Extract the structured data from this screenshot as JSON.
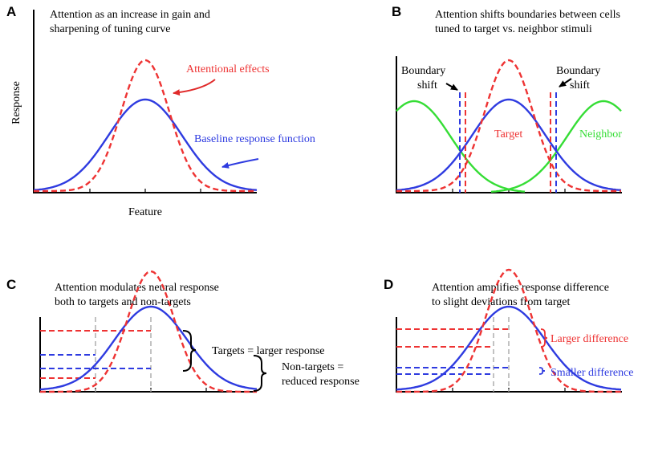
{
  "colors": {
    "baseline": "#2e3be0",
    "attention": "#ee3333",
    "neighbor": "#35dd35",
    "guide": "#a8a8a8",
    "arrow_red": "#e02a2a",
    "arrow_blue": "#2e3be0"
  },
  "panels": {
    "A": {
      "letter": "A",
      "caption": [
        "Attention as an increase in gain and",
        "sharpening of tuning curve"
      ],
      "ylabel": "Response",
      "xlabel": "Feature",
      "labels": {
        "attentional": "Attentional effects",
        "baseline": "Baseline response function"
      }
    },
    "B": {
      "letter": "B",
      "caption": [
        "Attention shifts boundaries between cells",
        "tuned to target vs. neighbor stimuli"
      ],
      "labels": {
        "boundary_left": [
          "Boundary",
          "shift"
        ],
        "boundary_right": [
          "Boundary",
          "shift"
        ],
        "target": "Target",
        "neighbor": "Neighbor"
      }
    },
    "C": {
      "letter": "C",
      "caption": [
        "Attention modulates neural response",
        "both to targets and non-targets"
      ],
      "labels": {
        "targets": "Targets = larger response",
        "nontargets": [
          "Non-targets =",
          "reduced response"
        ]
      }
    },
    "D": {
      "letter": "D",
      "caption": [
        "Attention amplifies response difference",
        "to slight deviations from target"
      ],
      "labels": {
        "larger": "Larger difference",
        "smaller": "Smaller difference"
      }
    }
  }
}
